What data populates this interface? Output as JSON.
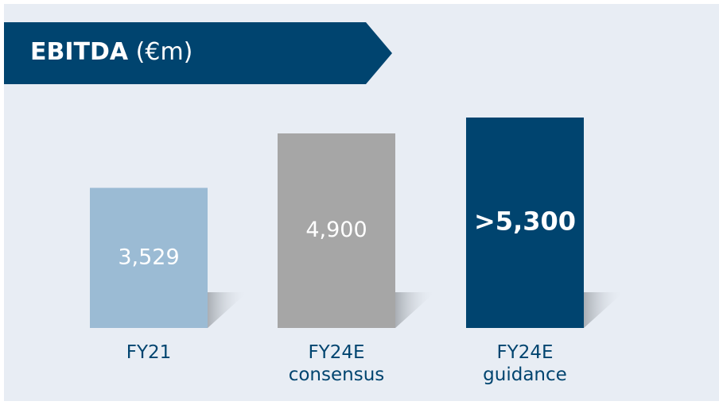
{
  "chart_data": {
    "type": "bar",
    "title": "EBITDA",
    "unit": "(€m)",
    "categories": [
      "FY21",
      "FY24E consensus",
      "FY24E guidance"
    ],
    "values": [
      3529,
      4900,
      5300
    ],
    "value_labels": [
      "3,529",
      "4,900",
      ">5,300"
    ],
    "colors": [
      "#9bbbd4",
      "#a6a6a6",
      "#00446f"
    ]
  }
}
